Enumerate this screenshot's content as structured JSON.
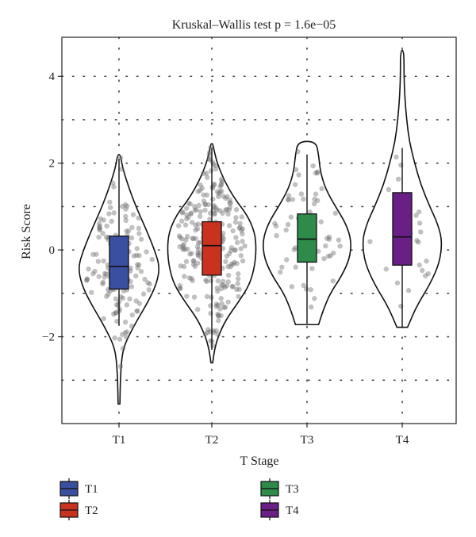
{
  "chart_data": {
    "type": "violin",
    "title": "Kruskal–Wallis test p = 1.6e−05",
    "xlabel": "T Stage",
    "ylabel": "Risk Score",
    "categories": [
      "T1",
      "T2",
      "T3",
      "T4"
    ],
    "ylim": [
      -4.0,
      4.9
    ],
    "yticks": [
      {
        "value": 4,
        "label": "4"
      },
      {
        "value": 2,
        "label": "2"
      },
      {
        "value": 0,
        "label": "0"
      },
      {
        "value": -2,
        "label": "−2"
      }
    ],
    "grid": "dotted",
    "legend_position": "bottom",
    "colors": {
      "T1": "#3b4fa0",
      "T2": "#c8321e",
      "T3": "#2e8b4a",
      "T4": "#6a1f86"
    },
    "series": [
      {
        "name": "T1",
        "box": {
          "min": -1.75,
          "q1": -0.9,
          "median": -0.38,
          "q3": 0.32,
          "max": 2.1
        },
        "range": [
          -3.55,
          2.2
        ],
        "violin": [
          [
            -3.55,
            0.02
          ],
          [
            -3.0,
            0.03
          ],
          [
            -2.5,
            0.06
          ],
          [
            -2.2,
            0.12
          ],
          [
            -1.9,
            0.26
          ],
          [
            -1.6,
            0.42
          ],
          [
            -1.2,
            0.65
          ],
          [
            -0.8,
            0.84
          ],
          [
            -0.4,
            0.92
          ],
          [
            0.0,
            0.8
          ],
          [
            0.5,
            0.6
          ],
          [
            1.0,
            0.38
          ],
          [
            1.5,
            0.2
          ],
          [
            1.9,
            0.08
          ],
          [
            2.2,
            0.03
          ]
        ],
        "n_points": 140
      },
      {
        "name": "T2",
        "box": {
          "min": -2.3,
          "q1": -0.58,
          "median": 0.1,
          "q3": 0.65,
          "max": 2.35
        },
        "range": [
          -2.6,
          2.45
        ],
        "violin": [
          [
            -2.6,
            0.02
          ],
          [
            -2.3,
            0.06
          ],
          [
            -2.0,
            0.14
          ],
          [
            -1.6,
            0.32
          ],
          [
            -1.2,
            0.6
          ],
          [
            -0.8,
            0.85
          ],
          [
            -0.4,
            0.96
          ],
          [
            0.0,
            1.0
          ],
          [
            0.4,
            0.97
          ],
          [
            0.8,
            0.8
          ],
          [
            1.2,
            0.5
          ],
          [
            1.6,
            0.28
          ],
          [
            2.0,
            0.12
          ],
          [
            2.3,
            0.05
          ],
          [
            2.45,
            0.02
          ]
        ],
        "n_points": 260
      },
      {
        "name": "T3",
        "box": {
          "min": -1.7,
          "q1": -0.28,
          "median": 0.25,
          "q3": 0.83,
          "max": 2.2
        },
        "range": [
          -1.72,
          2.5
        ],
        "violin": [
          [
            -1.72,
            0.26
          ],
          [
            -1.4,
            0.36
          ],
          [
            -1.0,
            0.52
          ],
          [
            -0.6,
            0.78
          ],
          [
            -0.2,
            0.96
          ],
          [
            0.2,
            1.0
          ],
          [
            0.6,
            0.88
          ],
          [
            1.0,
            0.64
          ],
          [
            1.4,
            0.42
          ],
          [
            1.8,
            0.3
          ],
          [
            2.2,
            0.26
          ],
          [
            2.5,
            0.2
          ]
        ],
        "n_points": 60
      },
      {
        "name": "T4",
        "box": {
          "min": -1.78,
          "q1": -0.35,
          "median": 0.3,
          "q3": 1.32,
          "max": 2.35
        },
        "range": [
          -1.78,
          4.6
        ],
        "violin": [
          [
            -1.78,
            0.12
          ],
          [
            -1.3,
            0.32
          ],
          [
            -0.8,
            0.62
          ],
          [
            -0.3,
            0.84
          ],
          [
            0.2,
            0.9
          ],
          [
            0.6,
            0.8
          ],
          [
            1.0,
            0.62
          ],
          [
            1.5,
            0.42
          ],
          [
            2.0,
            0.28
          ],
          [
            2.5,
            0.16
          ],
          [
            3.0,
            0.1
          ],
          [
            3.5,
            0.06
          ],
          [
            4.0,
            0.04
          ],
          [
            4.6,
            0.04
          ]
        ],
        "n_points": 25
      }
    ]
  }
}
